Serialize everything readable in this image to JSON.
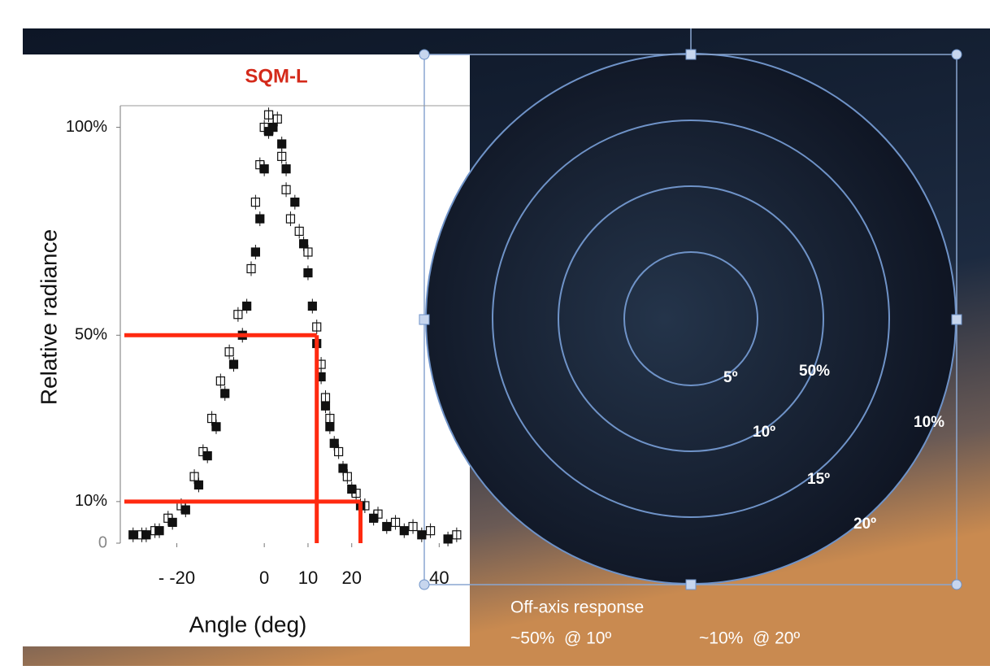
{
  "chart_data": {
    "type": "scatter",
    "title": "SQM-L",
    "xlabel": "Angle (deg)",
    "ylabel": "Relative radiance",
    "xlim": [
      -32,
      47
    ],
    "ylim": [
      0,
      105
    ],
    "xticks": [
      {
        "value": -20,
        "label": "- -20"
      },
      0,
      10,
      20,
      40
    ],
    "yticks": [
      0,
      {
        "value": 10,
        "label": "10%"
      },
      {
        "value": 50,
        "label": "50%"
      },
      {
        "value": 100,
        "label": "100%"
      }
    ],
    "series": [
      {
        "marker": "filled",
        "color": "#111111",
        "x": [
          -30,
          -27,
          -24,
          -21,
          -18,
          -15,
          -13,
          -11,
          -9,
          -7,
          -5,
          -4,
          -2,
          -1,
          0,
          1,
          2,
          4,
          5,
          7,
          9,
          10,
          11,
          12,
          13,
          14,
          15,
          16,
          18,
          20,
          22,
          25,
          28,
          32,
          36,
          42
        ],
        "values": [
          2,
          2,
          3,
          5,
          8,
          14,
          21,
          28,
          36,
          43,
          50,
          57,
          70,
          78,
          90,
          99,
          100,
          96,
          90,
          82,
          72,
          65,
          57,
          48,
          40,
          33,
          28,
          24,
          18,
          13,
          9,
          6,
          4,
          3,
          2,
          1
        ]
      },
      {
        "marker": "open",
        "color": "#111111",
        "x": [
          -28,
          -25,
          -22,
          -19,
          -16,
          -14,
          -12,
          -10,
          -8,
          -6,
          -3,
          -2,
          -1,
          0,
          1,
          3,
          4,
          5,
          6,
          8,
          10,
          12,
          13,
          14,
          15,
          17,
          19,
          21,
          23,
          26,
          30,
          34,
          38,
          44
        ],
        "values": [
          2,
          3,
          6,
          9,
          16,
          22,
          30,
          39,
          46,
          55,
          66,
          82,
          91,
          100,
          103,
          102,
          93,
          85,
          78,
          75,
          70,
          52,
          43,
          35,
          30,
          22,
          16,
          12,
          9,
          7,
          5,
          4,
          3,
          2
        ]
      }
    ],
    "guides": [
      {
        "y": 50,
        "x": 12
      },
      {
        "y": 10,
        "x": 22
      }
    ],
    "guide_color": "#ff2a10"
  },
  "diagram": {
    "ring_labels": [
      "5º",
      "10º",
      "15º",
      "20º"
    ],
    "level_labels": [
      "50%",
      "10%"
    ]
  },
  "caption": {
    "title": "Off-axis response",
    "left": "~50%  @ 10º",
    "right": "~10%  @ 20º"
  }
}
